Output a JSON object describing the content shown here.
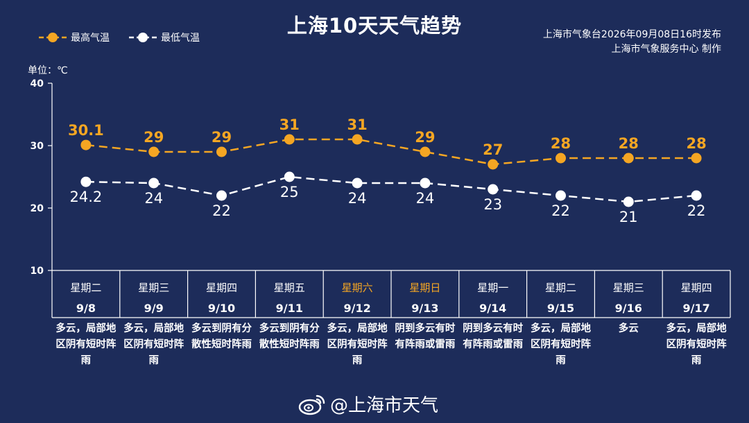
{
  "title": "上海10天天气趋势",
  "legend": {
    "high_label": "最高气温",
    "low_label": "最低气温"
  },
  "issuer": {
    "line1": "上海市气象台2026年09月08日16时发布",
    "line2": "上海市气象服务中心  制作"
  },
  "unit_label": "单位：℃",
  "footer": {
    "handle": "@上海市天气",
    "icon": "weibo-logo-icon"
  },
  "colors": {
    "background": "#1d2c5a",
    "high": "#f5a623",
    "low": "#ffffff",
    "weekend": "#f5a623",
    "grid": "#ffffff"
  },
  "chart_data": {
    "type": "line",
    "title": "上海10天天气趋势",
    "ylabel": "单位：℃",
    "ylim": [
      10,
      40
    ],
    "yticks": [
      10,
      20,
      30,
      40
    ],
    "grid": false,
    "legend_position": "top-left",
    "days": [
      {
        "weekday": "星期二",
        "date": "9/8",
        "weekend": false,
        "weather": "多云，局部地区阴有短时阵雨"
      },
      {
        "weekday": "星期三",
        "date": "9/9",
        "weekend": false,
        "weather": "多云，局部地区阴有短时阵雨"
      },
      {
        "weekday": "星期四",
        "date": "9/10",
        "weekend": false,
        "weather": "多云到阴有分散性短时阵雨"
      },
      {
        "weekday": "星期五",
        "date": "9/11",
        "weekend": false,
        "weather": "多云到阴有分散性短时阵雨"
      },
      {
        "weekday": "星期六",
        "date": "9/12",
        "weekend": true,
        "weather": "多云，局部地区阴有短时阵雨"
      },
      {
        "weekday": "星期日",
        "date": "9/13",
        "weekend": true,
        "weather": "阴到多云有时有阵雨或雷雨"
      },
      {
        "weekday": "星期一",
        "date": "9/14",
        "weekend": false,
        "weather": "阴到多云有时有阵雨或雷雨"
      },
      {
        "weekday": "星期二",
        "date": "9/15",
        "weekend": false,
        "weather": "多云，局部地区阴有短时阵雨"
      },
      {
        "weekday": "星期三",
        "date": "9/16",
        "weekend": false,
        "weather": "多云"
      },
      {
        "weekday": "星期四",
        "date": "9/17",
        "weekend": false,
        "weather": "多云，局部地区阴有短时阵雨"
      }
    ],
    "series": [
      {
        "name": "最高气温",
        "values": [
          30.1,
          29,
          29,
          31,
          31,
          29,
          27,
          28,
          28,
          28
        ],
        "labels": [
          "30.1",
          "29",
          "29",
          "31",
          "31",
          "29",
          "27",
          "28",
          "28",
          "28"
        ]
      },
      {
        "name": "最低气温",
        "values": [
          24.2,
          24,
          22,
          25,
          24,
          24,
          23,
          22,
          21,
          22
        ],
        "labels": [
          "24.2",
          "24",
          "22",
          "25",
          "24",
          "24",
          "23",
          "22",
          "21",
          "22"
        ]
      }
    ]
  }
}
